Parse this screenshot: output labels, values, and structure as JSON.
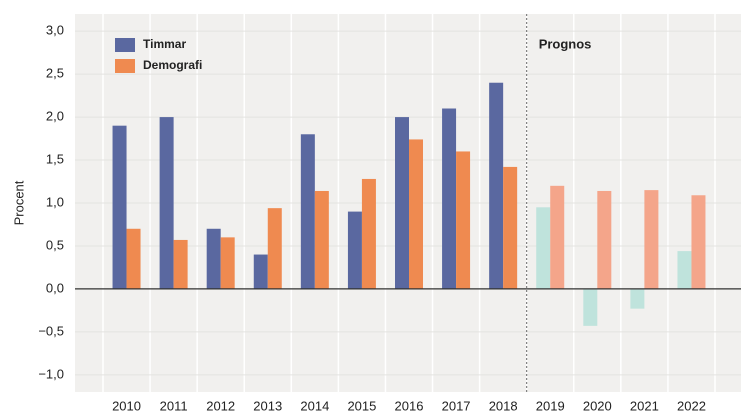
{
  "chart_data": {
    "type": "bar",
    "y_label": "Procent",
    "annotation": "Prognos",
    "categories": [
      "2010",
      "2011",
      "2012",
      "2013",
      "2014",
      "2015",
      "2016",
      "2017",
      "2018",
      "2019",
      "2020",
      "2021",
      "2022"
    ],
    "series": [
      {
        "name": "Timmar",
        "color": "#5a68a0",
        "colors": [
          "#5a68a0",
          "#5a68a0",
          "#5a68a0",
          "#5a68a0",
          "#5a68a0",
          "#5a68a0",
          "#5a68a0",
          "#5a68a0",
          "#5a68a0",
          "#bfe3dc",
          "#bfe3dc",
          "#bfe3dc",
          "#bfe3dc"
        ],
        "values": [
          1.9,
          2.0,
          0.7,
          0.4,
          1.8,
          0.9,
          2.0,
          2.1,
          2.4,
          0.95,
          -0.43,
          -0.23,
          0.44
        ]
      },
      {
        "name": "Demografi",
        "color": "#ef8a50",
        "colors": [
          "#ef8a50",
          "#ef8a50",
          "#ef8a50",
          "#ef8a50",
          "#ef8a50",
          "#ef8a50",
          "#ef8a50",
          "#ef8a50",
          "#ef8a50",
          "#f4a58a",
          "#f4a58a",
          "#f4a58a",
          "#f4a58a"
        ],
        "values": [
          0.7,
          0.57,
          0.6,
          0.94,
          1.14,
          1.28,
          1.74,
          1.6,
          1.42,
          1.2,
          1.14,
          1.15,
          1.09
        ]
      }
    ],
    "ylim": [
      -1.2,
      3.2
    ],
    "yticks": [
      {
        "value": -1,
        "label": "−1,0"
      },
      {
        "value": -0.5,
        "label": "−0,5"
      },
      {
        "value": 0,
        "label": "0,0"
      },
      {
        "value": 0.5,
        "label": "0,5"
      },
      {
        "value": 1,
        "label": "1,0"
      },
      {
        "value": 1.5,
        "label": "1,5"
      },
      {
        "value": 2,
        "label": "2,0"
      },
      {
        "value": 2.5,
        "label": "2,5"
      },
      {
        "value": 3,
        "label": "3,0"
      }
    ],
    "grid": true
  }
}
